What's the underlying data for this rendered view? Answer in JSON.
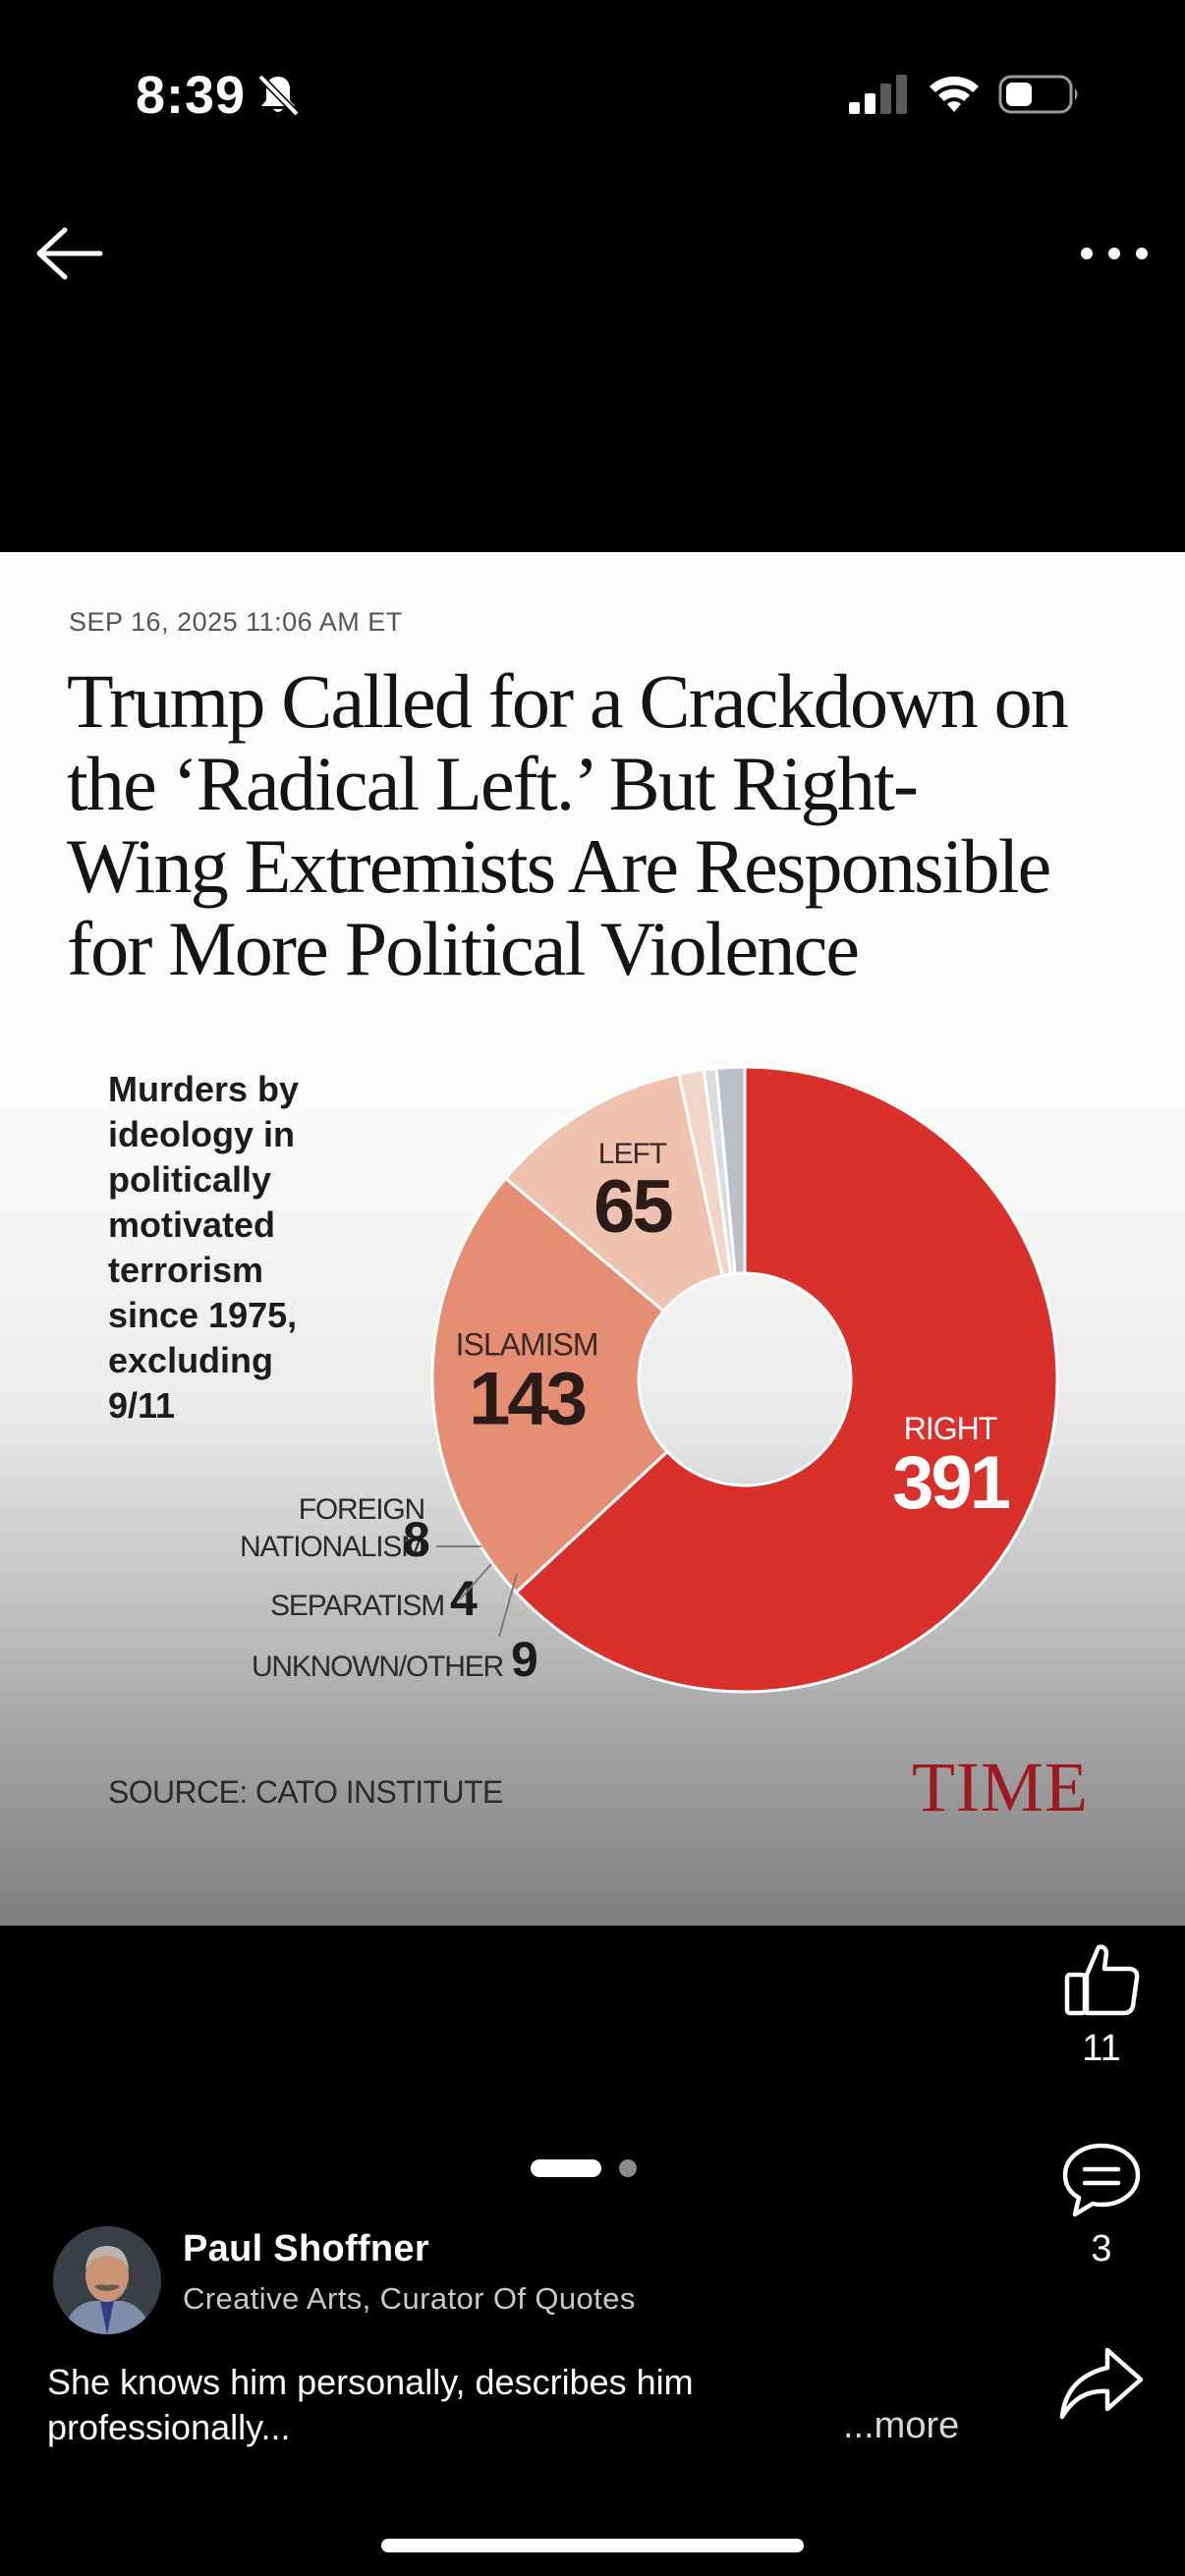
{
  "status_bar": {
    "time": "8:39"
  },
  "nav": {
    "back_icon": "arrow-left-icon",
    "more_icon": "more-horizontal-icon"
  },
  "article": {
    "dateline": "SEP 16, 2025 11:06 AM ET",
    "headline_lines": [
      "Trump Called for a Crackdown on",
      "the ‘Radical Left.’ But Right-",
      "Wing Extremists Are Responsible",
      "for More Political Violence"
    ],
    "chart_description_lines": [
      "Murders by",
      "ideology in",
      "politically",
      "motivated",
      "terrorism",
      "since 1975,",
      "excluding",
      "9/11"
    ],
    "source": "SOURCE: CATO INSTITUTE",
    "logo": "TIME"
  },
  "chart_data": {
    "type": "pie",
    "donut": true,
    "categories": [
      "RIGHT",
      "ISLAMISM",
      "LEFT",
      "FOREIGN NATIONALISM",
      "SEPARATISM",
      "UNKNOWN/OTHER"
    ],
    "values": [
      391,
      143,
      65,
      8,
      4,
      9
    ],
    "label_lines": [
      [
        "RIGHT"
      ],
      [
        "ISLAMISM"
      ],
      [
        "LEFT"
      ],
      [
        "FOREIGN",
        "NATIONALISM"
      ],
      [
        "SEPARATISM"
      ],
      [
        "UNKNOWN/OTHER"
      ]
    ],
    "colors": [
      "#d8312c",
      "#e58e74",
      "#efc2ae",
      "#f1d6c8",
      "#dcdcdc",
      "#bcbfc6"
    ],
    "title": ""
  },
  "actions": {
    "like": {
      "icon": "thumbs-up-icon",
      "count": "11"
    },
    "comment": {
      "icon": "comment-icon",
      "count": "3"
    },
    "share": {
      "icon": "share-icon"
    }
  },
  "pager": {
    "pages": 2,
    "current": 1
  },
  "author": {
    "name": "Paul Shoffner",
    "role": "Creative Arts, Curator Of Quotes"
  },
  "post": {
    "caption_lines": [
      "She knows him personally, describes him",
      "professionally..."
    ],
    "more_label": "...more"
  }
}
